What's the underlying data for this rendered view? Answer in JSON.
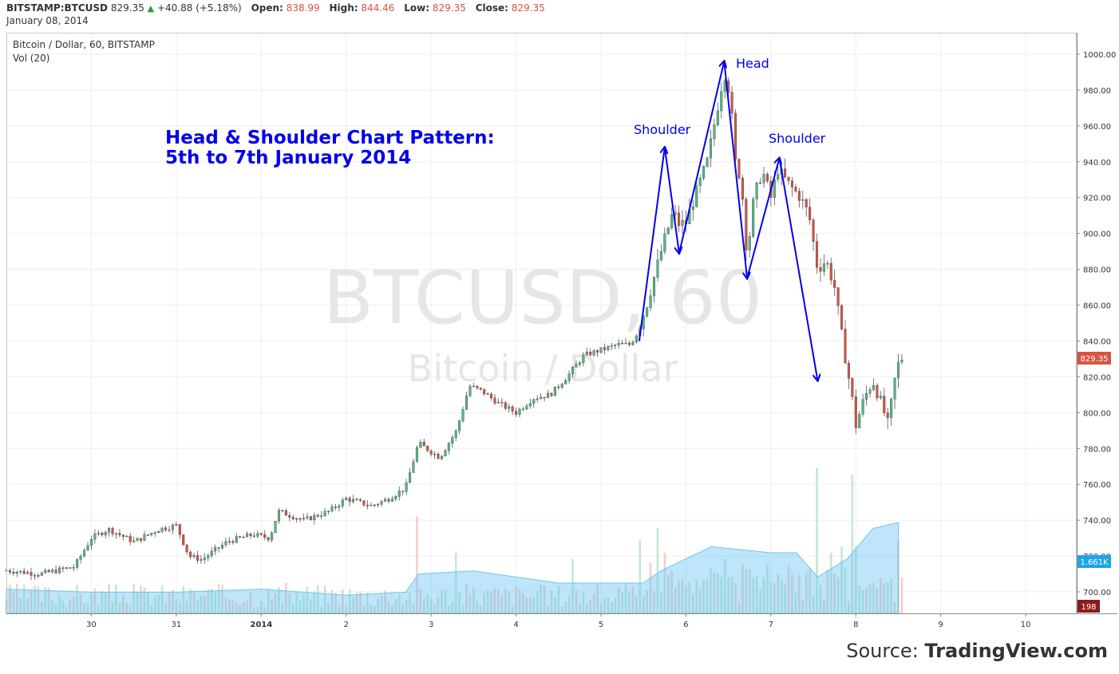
{
  "header": {
    "symbol": "BITSTAMP:BTCUSD",
    "last": "829.35",
    "change_arrow": "▲",
    "change": "+40.88 (+5.18%)",
    "open_label": "Open:",
    "open": "838.99",
    "high_label": "High:",
    "high": "844.46",
    "low_label": "Low:",
    "low": "829.35",
    "close_label": "Close:",
    "close": "829.35",
    "date": "January 08, 2014"
  },
  "legend": {
    "series": "Bitcoin / Dollar, 60, BITSTAMP",
    "volume": "Vol (20)"
  },
  "watermark": {
    "line1": "BTCUSD, 60",
    "line2": "Bitcoin / Dollar"
  },
  "annotation": {
    "title_line1": "Head & Shoulder Chart Pattern:",
    "title_line2": "5th to 7th January 2014",
    "head": "Head",
    "shoulder_left": "Shoulder",
    "shoulder_right": "Shoulder"
  },
  "source": {
    "prefix": "Source: ",
    "brand": "TradingView.com"
  },
  "colors": {
    "up": "#53b987",
    "down": "#d75442",
    "annotation": "#0000ee",
    "volume_ma": "#6ec6f1",
    "last_price_tag": "#d75442",
    "volume_ma_tag": "#1ea4e8",
    "volume_tag": "#8b1a1a"
  },
  "chart_data": {
    "type": "candlestick",
    "title": "Bitcoin / Dollar, 60, BITSTAMP",
    "y_ticks": [
      "700.00",
      "720.00",
      "740.00",
      "760.00",
      "780.00",
      "800.00",
      "820.00",
      "840.00",
      "860.00",
      "880.00",
      "900.00",
      "920.00",
      "940.00",
      "960.00",
      "980.00",
      "1000.00"
    ],
    "ylim": [
      688,
      1012
    ],
    "x_ticks": [
      {
        "label": "30",
        "day": 1
      },
      {
        "label": "31",
        "day": 2
      },
      {
        "label": "2014",
        "day": 3
      },
      {
        "label": "2",
        "day": 4
      },
      {
        "label": "3",
        "day": 5
      },
      {
        "label": "4",
        "day": 6
      },
      {
        "label": "5",
        "day": 7
      },
      {
        "label": "6",
        "day": 8
      },
      {
        "label": "7",
        "day": 9
      },
      {
        "label": "8",
        "day": 10
      },
      {
        "label": "9",
        "day": 11
      },
      {
        "label": "10",
        "day": 12
      }
    ],
    "xlim_days": [
      0,
      12.6
    ],
    "price_anchors": [
      [
        0.0,
        712
      ],
      [
        0.4,
        710
      ],
      [
        0.8,
        714
      ],
      [
        1.0,
        730
      ],
      [
        1.2,
        735
      ],
      [
        1.5,
        728
      ],
      [
        1.8,
        735
      ],
      [
        2.0,
        737
      ],
      [
        2.15,
        720
      ],
      [
        2.3,
        718
      ],
      [
        2.6,
        728
      ],
      [
        2.9,
        732
      ],
      [
        3.1,
        730
      ],
      [
        3.2,
        745
      ],
      [
        3.5,
        740
      ],
      [
        3.8,
        745
      ],
      [
        4.0,
        752
      ],
      [
        4.3,
        748
      ],
      [
        4.5,
        752
      ],
      [
        4.7,
        758
      ],
      [
        4.85,
        783
      ],
      [
        5.1,
        775
      ],
      [
        5.3,
        790
      ],
      [
        5.45,
        815
      ],
      [
        5.6,
        812
      ],
      [
        5.8,
        805
      ],
      [
        6.0,
        800
      ],
      [
        6.2,
        808
      ],
      [
        6.4,
        810
      ],
      [
        6.6,
        820
      ],
      [
        6.8,
        832
      ],
      [
        7.0,
        835
      ],
      [
        7.2,
        838
      ],
      [
        7.35,
        838
      ],
      [
        7.45,
        848
      ],
      [
        7.55,
        862
      ],
      [
        7.65,
        880
      ],
      [
        7.75,
        897
      ],
      [
        7.85,
        912
      ],
      [
        7.92,
        905
      ],
      [
        8.0,
        906
      ],
      [
        8.1,
        920
      ],
      [
        8.25,
        940
      ],
      [
        8.35,
        965
      ],
      [
        8.45,
        990
      ],
      [
        8.52,
        978
      ],
      [
        8.58,
        940
      ],
      [
        8.65,
        930
      ],
      [
        8.72,
        887
      ],
      [
        8.8,
        920
      ],
      [
        8.9,
        935
      ],
      [
        9.0,
        920
      ],
      [
        9.08,
        936
      ],
      [
        9.2,
        928
      ],
      [
        9.35,
        920
      ],
      [
        9.45,
        910
      ],
      [
        9.55,
        880
      ],
      [
        9.65,
        885
      ],
      [
        9.75,
        870
      ],
      [
        9.85,
        838
      ],
      [
        9.95,
        810
      ],
      [
        10.0,
        793
      ],
      [
        10.1,
        808
      ],
      [
        10.2,
        818
      ],
      [
        10.3,
        805
      ],
      [
        10.38,
        793
      ],
      [
        10.48,
        825
      ],
      [
        10.58,
        835
      ]
    ],
    "last_price": 829.35,
    "volume": {
      "max_label": "1.661K",
      "last": "198",
      "spikes": [
        [
          4.85,
          16
        ],
        [
          5.3,
          10
        ],
        [
          6.65,
          9
        ],
        [
          7.45,
          12
        ],
        [
          7.65,
          14
        ],
        [
          7.75,
          10
        ],
        [
          8.45,
          9
        ],
        [
          8.55,
          6
        ],
        [
          8.65,
          8
        ],
        [
          9.55,
          24
        ],
        [
          9.7,
          10
        ],
        [
          9.85,
          11
        ],
        [
          9.95,
          23
        ],
        [
          10.0,
          11
        ],
        [
          10.48,
          12
        ]
      ],
      "ma_anchors": [
        [
          0,
          4
        ],
        [
          1,
          3.5
        ],
        [
          2,
          3.5
        ],
        [
          3,
          4
        ],
        [
          4,
          3
        ],
        [
          4.7,
          3.5
        ],
        [
          4.85,
          6.5
        ],
        [
          5.5,
          7
        ],
        [
          6.0,
          6
        ],
        [
          6.5,
          5
        ],
        [
          7.0,
          5
        ],
        [
          7.5,
          5
        ],
        [
          7.7,
          7
        ],
        [
          8.3,
          11
        ],
        [
          9.0,
          10
        ],
        [
          9.3,
          10
        ],
        [
          9.55,
          6
        ],
        [
          9.9,
          9
        ],
        [
          10.2,
          14
        ],
        [
          10.5,
          15
        ]
      ]
    },
    "annotation_lines": [
      [
        [
          7.45,
          840
        ],
        [
          7.75,
          948
        ]
      ],
      [
        [
          7.75,
          948
        ],
        [
          7.92,
          889
        ]
      ],
      [
        [
          7.92,
          889
        ],
        [
          8.45,
          996
        ]
      ],
      [
        [
          8.45,
          996
        ],
        [
          8.72,
          875
        ]
      ],
      [
        [
          8.72,
          875
        ],
        [
          9.1,
          942
        ]
      ],
      [
        [
          9.1,
          942
        ],
        [
          9.55,
          818
        ]
      ]
    ]
  }
}
